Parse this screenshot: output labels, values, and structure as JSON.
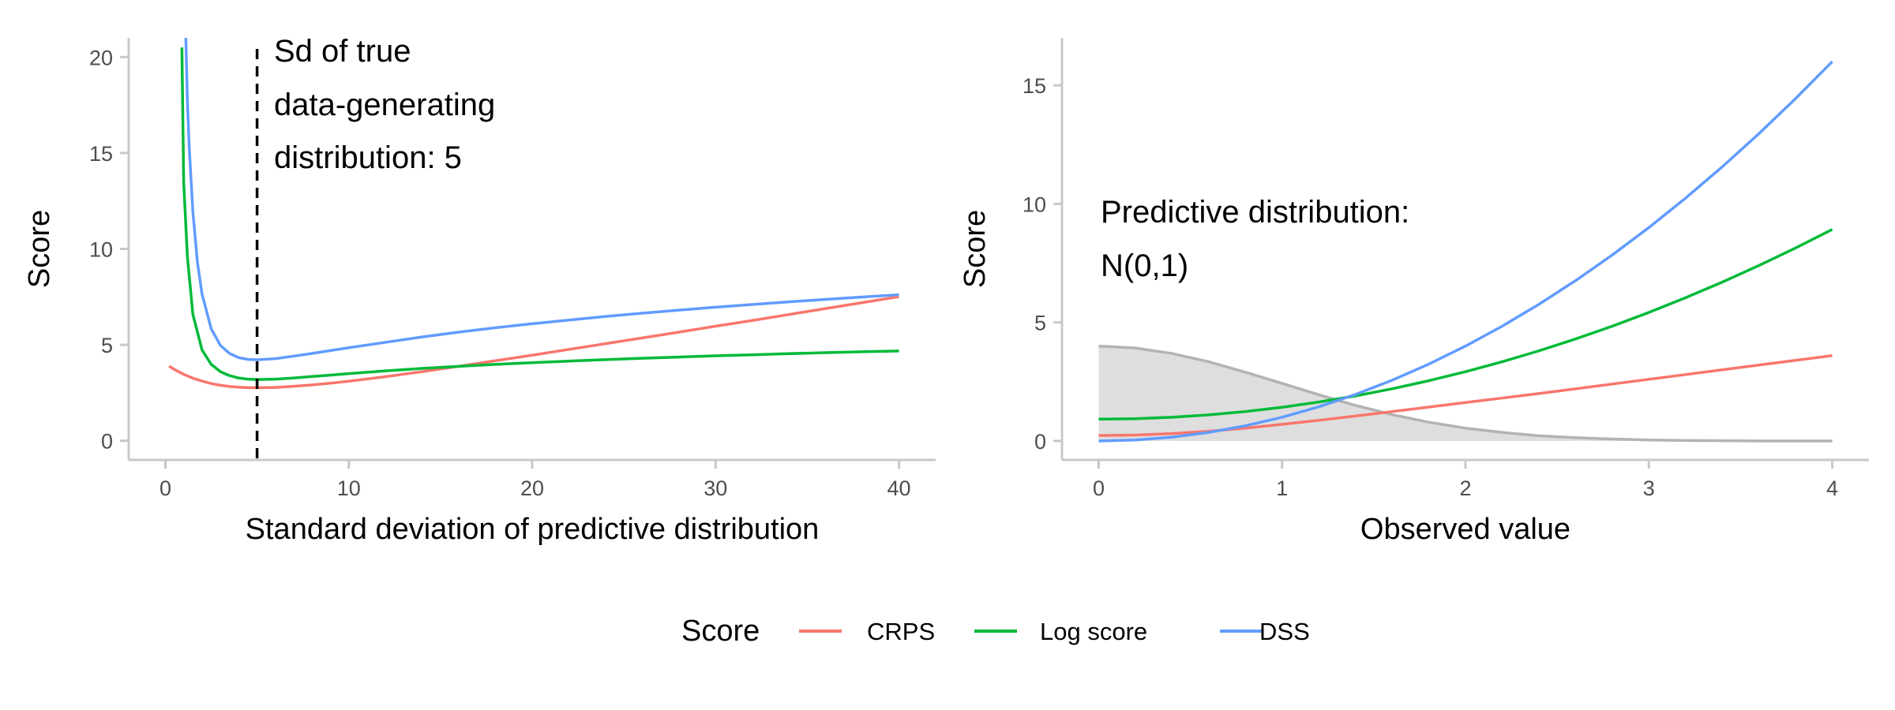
{
  "chart_data": [
    {
      "type": "line",
      "panel": "left",
      "xlabel": "Standard deviation of predictive distribution",
      "ylabel": "Score",
      "xlim": [
        -2,
        42
      ],
      "ylim": [
        -1,
        21
      ],
      "x_ticks": [
        0,
        10,
        20,
        30,
        40
      ],
      "y_ticks": [
        0,
        5,
        10,
        15,
        20
      ],
      "grid": false,
      "annotation": {
        "lines": [
          "Sd of true",
          "data-generating",
          "distribution: 5"
        ],
        "vline_x": 5,
        "vline_style": "dashed"
      },
      "series": [
        {
          "name": "CRPS",
          "color": "#F8766D",
          "x": [
            0.2,
            0.5,
            1,
            1.5,
            2,
            2.5,
            3,
            3.5,
            4,
            4.5,
            5,
            6,
            7,
            8,
            9,
            10,
            12,
            14,
            16,
            18,
            20,
            22,
            24,
            26,
            28,
            30,
            32,
            34,
            36,
            38,
            40
          ],
          "values": [
            3.89,
            3.71,
            3.46,
            3.26,
            3.11,
            2.98,
            2.89,
            2.83,
            2.79,
            2.77,
            2.76,
            2.78,
            2.84,
            2.91,
            3.0,
            3.1,
            3.34,
            3.6,
            3.88,
            4.17,
            4.46,
            4.76,
            5.06,
            5.36,
            5.66,
            5.97,
            6.27,
            6.58,
            6.89,
            7.2,
            7.51
          ]
        },
        {
          "name": "Log score",
          "color": "#00BA38",
          "x": [
            0.9,
            1,
            1.2,
            1.5,
            2,
            2.5,
            3,
            3.5,
            4,
            4.5,
            5,
            6,
            7,
            8,
            9,
            10,
            12,
            14,
            16,
            18,
            20,
            22,
            24,
            26,
            28,
            30,
            32,
            34,
            36,
            38,
            40
          ],
          "values": [
            20.5,
            13.42,
            9.6,
            6.58,
            4.73,
            3.98,
            3.6,
            3.39,
            3.27,
            3.21,
            3.19,
            3.21,
            3.27,
            3.35,
            3.42,
            3.5,
            3.64,
            3.77,
            3.88,
            3.98,
            4.07,
            4.15,
            4.23,
            4.3,
            4.36,
            4.43,
            4.48,
            4.54,
            4.59,
            4.64,
            4.68
          ]
        },
        {
          "name": "DSS",
          "color": "#619CFF",
          "x": [
            1.0,
            1.1,
            1.2,
            1.3,
            1.5,
            1.75,
            2,
            2.5,
            3,
            3.5,
            4,
            4.5,
            5,
            6,
            7,
            8,
            9,
            10,
            12,
            14,
            16,
            18,
            20,
            22,
            24,
            26,
            28,
            30,
            32,
            34,
            36,
            38,
            40
          ],
          "values": [
            26.0,
            21.6,
            17.73,
            15.3,
            11.92,
            9.28,
            7.64,
            5.83,
            4.97,
            4.55,
            4.33,
            4.24,
            4.22,
            4.28,
            4.41,
            4.55,
            4.7,
            4.85,
            5.13,
            5.41,
            5.66,
            5.89,
            6.1,
            6.29,
            6.48,
            6.65,
            6.81,
            6.96,
            7.1,
            7.24,
            7.37,
            7.49,
            7.61
          ]
        }
      ]
    },
    {
      "type": "line",
      "panel": "right",
      "xlabel": "Observed value",
      "ylabel": "Score",
      "xlim": [
        -0.2,
        4.2
      ],
      "ylim": [
        -0.8,
        17
      ],
      "x_ticks": [
        0,
        1,
        2,
        3,
        4
      ],
      "y_ticks": [
        0,
        5,
        10,
        15
      ],
      "grid": false,
      "annotation": {
        "lines": [
          "Predictive distribution:",
          "N(0,1)"
        ]
      },
      "density_area": {
        "fill": "#dedede",
        "stroke": "#b3b3b3",
        "x": [
          0,
          0.2,
          0.4,
          0.6,
          0.8,
          1.0,
          1.2,
          1.4,
          1.6,
          1.8,
          2.0,
          2.2,
          2.4,
          2.6,
          2.8,
          3.0,
          3.2,
          3.4,
          3.6,
          3.8,
          4.0
        ],
        "values": [
          4.0,
          3.92,
          3.69,
          3.34,
          2.9,
          2.43,
          1.95,
          1.5,
          1.11,
          0.79,
          0.54,
          0.36,
          0.22,
          0.14,
          0.08,
          0.04,
          0.02,
          0.01,
          0.0,
          0.0,
          0.0
        ]
      },
      "series": [
        {
          "name": "CRPS",
          "color": "#F8766D",
          "x": [
            0,
            0.2,
            0.4,
            0.6,
            0.8,
            1.0,
            1.2,
            1.4,
            1.6,
            1.8,
            2.0,
            2.2,
            2.4,
            2.6,
            2.8,
            3.0,
            3.2,
            3.4,
            3.6,
            3.8,
            4.0
          ],
          "values": [
            0.23,
            0.25,
            0.31,
            0.41,
            0.54,
            0.7,
            0.87,
            1.05,
            1.24,
            1.43,
            1.62,
            1.81,
            2.0,
            2.2,
            2.4,
            2.6,
            2.8,
            3.0,
            3.2,
            3.4,
            3.6
          ]
        },
        {
          "name": "Log score",
          "color": "#00BA38",
          "x": [
            0,
            0.2,
            0.4,
            0.6,
            0.8,
            1.0,
            1.2,
            1.4,
            1.6,
            1.8,
            2.0,
            2.2,
            2.4,
            2.6,
            2.8,
            3.0,
            3.2,
            3.4,
            3.6,
            3.8,
            4.0
          ],
          "values": [
            0.92,
            0.94,
            1.0,
            1.1,
            1.24,
            1.42,
            1.64,
            1.9,
            2.2,
            2.54,
            2.92,
            3.34,
            3.8,
            4.3,
            4.84,
            5.42,
            6.04,
            6.7,
            7.4,
            8.14,
            8.92
          ]
        },
        {
          "name": "DSS",
          "color": "#619CFF",
          "x": [
            0,
            0.2,
            0.4,
            0.6,
            0.8,
            1.0,
            1.2,
            1.4,
            1.6,
            1.8,
            2.0,
            2.2,
            2.4,
            2.6,
            2.8,
            3.0,
            3.2,
            3.4,
            3.6,
            3.8,
            4.0
          ],
          "values": [
            0.0,
            0.04,
            0.16,
            0.36,
            0.64,
            1.0,
            1.44,
            1.96,
            2.56,
            3.24,
            4.0,
            4.84,
            5.76,
            6.76,
            7.84,
            9.0,
            10.24,
            11.56,
            12.96,
            14.44,
            16.0
          ]
        }
      ]
    }
  ],
  "legend": {
    "title": "Score",
    "position": "bottom",
    "items": [
      {
        "label": "CRPS",
        "color": "#F8766D"
      },
      {
        "label": "Log score",
        "color": "#00BA38"
      },
      {
        "label": "DSS",
        "color": "#619CFF"
      }
    ]
  }
}
